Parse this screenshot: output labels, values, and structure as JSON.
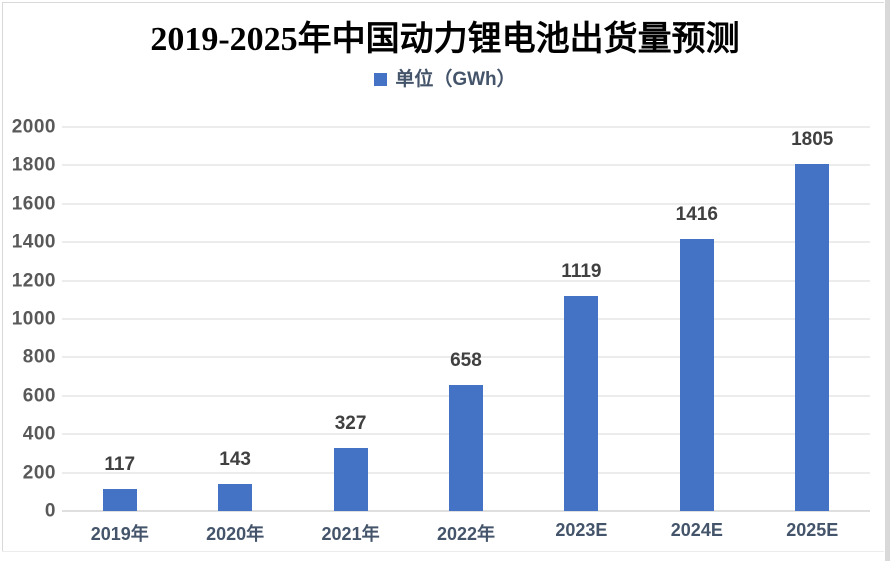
{
  "chart_data": {
    "type": "bar",
    "title": "2019-2025年中国动力锂电池出货量预测",
    "legend_entries": [
      "单位（GWh）"
    ],
    "legend_position": "top",
    "categories": [
      "2019年",
      "2020年",
      "2021年",
      "2022年",
      "2023E",
      "2024E",
      "2025E"
    ],
    "values": [
      117,
      143,
      327,
      658,
      1119,
      1416,
      1805
    ],
    "series": [
      {
        "name": "单位（GWh）",
        "values": [
          117,
          143,
          327,
          658,
          1119,
          1416,
          1805
        ]
      }
    ],
    "xlabel": "",
    "ylabel": "",
    "ylim": [
      0,
      2000
    ],
    "ytick_step": 200,
    "grid": true,
    "data_labels": true,
    "colors": {
      "bar": "#4472C4",
      "gridline": "#d9d9d9",
      "axis_line": "#bfbfbf",
      "ytick_text": "#595959",
      "xtick_text": "#44546A",
      "data_label_text": "#404040",
      "legend_text": "#44546A",
      "title_text": "#000000"
    }
  }
}
